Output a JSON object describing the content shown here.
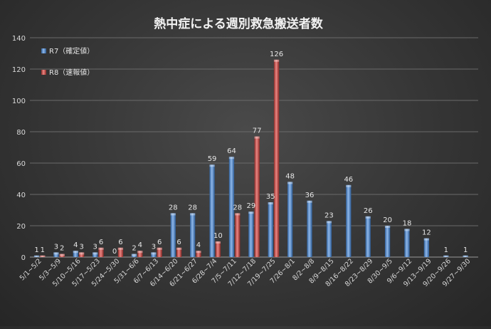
{
  "chart_data": {
    "type": "bar",
    "title": "熱中症による週別救急搬送者数",
    "xlabel": "",
    "ylabel": "",
    "ylim": [
      0,
      140
    ],
    "yticks": [
      0,
      20,
      40,
      60,
      80,
      100,
      120,
      140
    ],
    "grid": true,
    "legend_position": "top-left",
    "categories": [
      "5/1~5/2",
      "5/3~5/9",
      "5/10~5/16",
      "5/17~5/23",
      "5/24~5/30",
      "5/31~6/6",
      "6/7~6/13",
      "6/14~6/20",
      "6/21~6/27",
      "6/28~7/4",
      "7/5~7/11",
      "7/12~7/18",
      "7/19~7/25",
      "7/26~8/1",
      "8/2~8/8",
      "8/9~8/15",
      "8/16~8/22",
      "8/23~8/29",
      "8/30~9/5",
      "9/6~9/12",
      "9/13~9/19",
      "9/20~9/26",
      "9/27~9/30"
    ],
    "series": [
      {
        "name": "R7（確定値）",
        "color": "#4f81bd",
        "values": [
          1,
          3,
          4,
          3,
          0,
          2,
          3,
          28,
          28,
          59,
          64,
          29,
          35,
          48,
          36,
          23,
          46,
          26,
          20,
          18,
          12,
          1,
          1
        ]
      },
      {
        "name": "R8（速報値）",
        "color": "#c0504d",
        "values": [
          1,
          2,
          3,
          6,
          6,
          4,
          6,
          6,
          4,
          10,
          28,
          77,
          126,
          null,
          null,
          null,
          null,
          null,
          null,
          null,
          null,
          null,
          null
        ]
      }
    ]
  }
}
